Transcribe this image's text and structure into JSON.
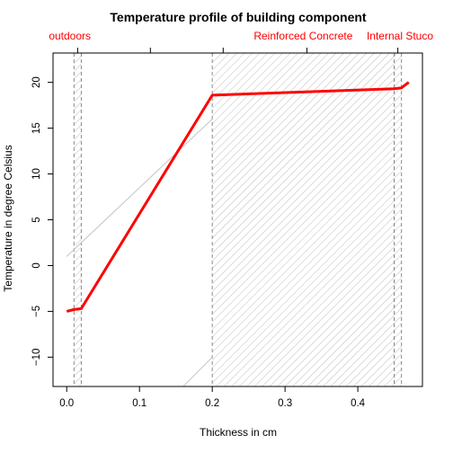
{
  "chart_data": {
    "type": "line",
    "title": "Temperature profile of building component",
    "xlabel": "Thickness in cm",
    "ylabel": "Temperature in degree Celsius",
    "xlim": [
      -0.0188,
      0.4888
    ],
    "ylim": [
      -13.2,
      23.2
    ],
    "x_ticks": [
      0.0,
      0.1,
      0.2,
      0.3,
      0.4
    ],
    "x_tick_labels": [
      "0.0",
      "0.1",
      "0.2",
      "0.3",
      "0.4"
    ],
    "y_ticks": [
      -10,
      -5,
      0,
      5,
      10,
      15,
      20
    ],
    "y_tick_labels": [
      "−10",
      "−5",
      "0",
      "5",
      "10",
      "15",
      "20"
    ],
    "top_axis_ticks": [
      0.015,
      0.115,
      0.215,
      0.33,
      0.455
    ],
    "series": [
      {
        "color": "#ff0000",
        "x": [
          0.0,
          0.01,
          0.02,
          0.2,
          0.45,
          0.46,
          0.47
        ],
        "y": [
          -5.0,
          -4.8,
          -4.7,
          18.6,
          19.3,
          19.4,
          20.0
        ]
      }
    ],
    "layers": [
      {
        "name": "outdoors",
        "x_start": 0.01,
        "x_end": 0.02,
        "color": "#ff0000"
      },
      {
        "name": "Reinforced Concrete",
        "x_start": 0.2,
        "x_end": 0.45,
        "color": "#ff0000"
      },
      {
        "name": "Internal Stuco",
        "x_start": 0.45,
        "x_end": 0.46,
        "color": "#ff0000"
      }
    ],
    "guide_lines": [
      {
        "x": [
          0.0,
          0.2
        ],
        "y": [
          1.0,
          16.0
        ],
        "color": "#cccccc"
      },
      {
        "x": [
          0.16,
          0.2
        ],
        "y": [
          -13.2,
          -10.0
        ],
        "color": "#cccccc"
      }
    ],
    "grid": false,
    "legend": "none"
  }
}
